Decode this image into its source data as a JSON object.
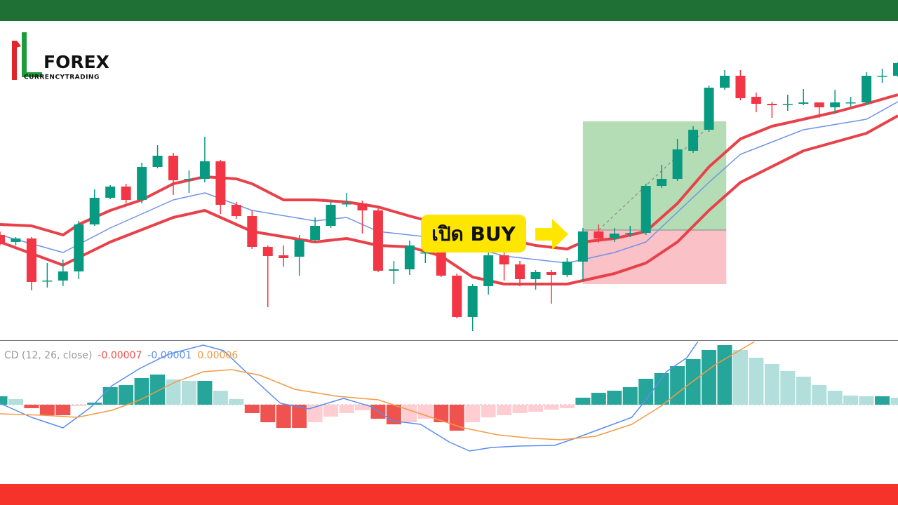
{
  "logo": {
    "brand": "FOREX",
    "tagline": "CURRENCYTRADING"
  },
  "chart_data": [
    {
      "type": "candlestick",
      "xlim": [
        0,
        57
      ],
      "ylim": [
        15,
        470
      ],
      "up_color": "#089981",
      "down_color": "#f23645",
      "open": [
        165,
        155,
        160,
        100,
        100,
        113,
        180,
        218,
        234,
        215,
        262,
        278,
        245,
        245,
        270,
        208,
        192,
        148,
        136,
        134,
        158,
        178,
        210,
        210,
        200,
        114,
        116,
        140,
        140,
        107,
        48,
        92,
        136,
        123,
        102,
        112,
        108,
        127,
        170,
        160,
        168,
        168,
        235,
        245,
        285,
        315,
        375,
        392,
        362,
        352,
        352,
        352,
        354,
        347,
        354,
        354,
        392,
        392
      ],
      "high": [
        170,
        162,
        162,
        125,
        130,
        185,
        230,
        236,
        238,
        268,
        293,
        282,
        257,
        305,
        272,
        212,
        200,
        150,
        150,
        165,
        190,
        214,
        225,
        214,
        203,
        128,
        157,
        150,
        145,
        110,
        95,
        140,
        140,
        128,
        115,
        115,
        132,
        175,
        180,
        175,
        178,
        238,
        265,
        302,
        320,
        378,
        400,
        400,
        368,
        355,
        365,
        373,
        354,
        372,
        362,
        397,
        402,
        412
      ],
      "low": [
        150,
        150,
        86,
        90,
        92,
        102,
        178,
        216,
        210,
        210,
        260,
        222,
        225,
        240,
        195,
        188,
        145,
        62,
        120,
        107,
        155,
        175,
        205,
        167,
        112,
        95,
        108,
        125,
        105,
        46,
        28,
        80,
        100,
        92,
        87,
        67,
        105,
        100,
        154,
        155,
        162,
        165,
        232,
        242,
        282,
        312,
        372,
        357,
        340,
        332,
        342,
        350,
        332,
        338,
        348,
        350,
        382,
        390
      ],
      "close": [
        152,
        160,
        98,
        100,
        113,
        180,
        218,
        234,
        215,
        262,
        278,
        243,
        245,
        270,
        208,
        192,
        148,
        135,
        132,
        158,
        178,
        208,
        210,
        200,
        114,
        116,
        150,
        140,
        107,
        48,
        92,
        136,
        123,
        102,
        112,
        108,
        127,
        170,
        160,
        167,
        168,
        235,
        245,
        287,
        315,
        375,
        392,
        360,
        352,
        350,
        352,
        354,
        347,
        354,
        354,
        392,
        392,
        410
      ],
      "series": [
        {
          "color": "#e8414a",
          "x": [
            0,
            2,
            4,
            5,
            7,
            9,
            11,
            13,
            15,
            16,
            18,
            20,
            22,
            24,
            26,
            28,
            30,
            32,
            34,
            36,
            37,
            39,
            41,
            43,
            45,
            47,
            49,
            51,
            53,
            55,
            57
          ],
          "values": [
            180,
            178,
            165,
            180,
            200,
            215,
            238,
            248,
            245,
            238,
            215,
            215,
            212,
            205,
            192,
            180,
            165,
            160,
            150,
            145,
            155,
            160,
            170,
            210,
            262,
            302,
            320,
            330,
            340,
            352,
            365
          ]
        },
        {
          "color": "#6f93e8",
          "x": [
            0,
            4,
            7,
            11,
            13,
            16,
            20,
            22,
            24,
            28,
            32,
            36,
            39,
            41,
            45,
            47,
            51,
            55,
            57
          ],
          "values": [
            165,
            140,
            175,
            215,
            225,
            200,
            185,
            190,
            170,
            160,
            135,
            125,
            140,
            155,
            240,
            280,
            315,
            330,
            355
          ]
        },
        {
          "color": "#e8414a",
          "x": [
            0,
            4,
            7,
            11,
            13,
            16,
            20,
            22,
            24,
            26,
            28,
            30,
            32,
            36,
            39,
            41,
            43,
            45,
            47,
            51,
            55,
            57
          ],
          "values": [
            155,
            122,
            155,
            190,
            200,
            170,
            155,
            160,
            150,
            148,
            135,
            105,
            95,
            95,
            110,
            125,
            155,
            200,
            240,
            285,
            310,
            335
          ]
        }
      ],
      "position": {
        "x": [
          37,
          46.1
        ],
        "entry": 172,
        "target": 327,
        "stop": 95,
        "path_x": [
          38,
          45
        ],
        "path_y": [
          172,
          320
        ]
      },
      "annotation": {
        "text": "เปิด BUY",
        "color": "#ffe600"
      }
    },
    {
      "type": "macd",
      "xlim": [
        0,
        57
      ],
      "ylim": [
        -113,
        90
      ],
      "title": "CD (12, 26, close)",
      "histogram": {
        "legend_value": -7e-05,
        "color": "#ef5350",
        "colors": {
          "pos_up": "#26a69a",
          "pos_down": "#b2dfdb",
          "neg_down": "#ef5350",
          "neg_up": "#ffcdd2"
        },
        "values": [
          12,
          8,
          -5,
          -15,
          -15,
          -2,
          3,
          25,
          28,
          38,
          43,
          36,
          34,
          34,
          20,
          8,
          -12,
          -25,
          -33,
          -33,
          -25,
          -17,
          -12,
          -8,
          -20,
          -28,
          -25,
          -20,
          -25,
          -37,
          -25,
          -18,
          -15,
          -12,
          -10,
          -7,
          -5,
          10,
          17,
          20,
          25,
          37,
          45,
          55,
          65,
          78,
          85,
          78,
          67,
          58,
          48,
          40,
          28,
          20,
          13,
          12,
          12,
          10
        ]
      },
      "series": [
        {
          "legend_value": -1e-05,
          "color": "#5b8def",
          "x": [
            0,
            2,
            4,
            5.8,
            7.1,
            8.9,
            10.7,
            12.9,
            14.2,
            15.6,
            17.8,
            19.6,
            21.8,
            23.6,
            24.9,
            26.7,
            28.5,
            29.8,
            31.2,
            32.9,
            35.2,
            36.5,
            38.3,
            40.1,
            41,
            42.3,
            43.6,
            44.3
          ],
          "values": [
            2,
            -18,
            -33,
            -3,
            27,
            52,
            72,
            85,
            77,
            47,
            2,
            -6,
            9,
            -3,
            -23,
            -28,
            -53,
            -66,
            -61,
            -59,
            -58,
            -48,
            -33,
            -18,
            7,
            47,
            67,
            90
          ]
        },
        {
          "legend_value": 6e-05,
          "color": "#f39a45",
          "x": [
            0,
            2.7,
            4.9,
            7.1,
            8.9,
            11.1,
            12.9,
            14.7,
            16.5,
            18.7,
            21.4,
            24,
            26.7,
            29.4,
            31.6,
            33.8,
            35.6,
            37.8,
            40.1,
            41.9,
            43.6,
            45.4,
            47.9
          ],
          "values": [
            -13,
            -15,
            -18,
            -8,
            7,
            32,
            47,
            50,
            42,
            22,
            12,
            7,
            -13,
            -33,
            -43,
            -48,
            -50,
            -45,
            -28,
            -3,
            27,
            57,
            90
          ]
        }
      ]
    }
  ]
}
